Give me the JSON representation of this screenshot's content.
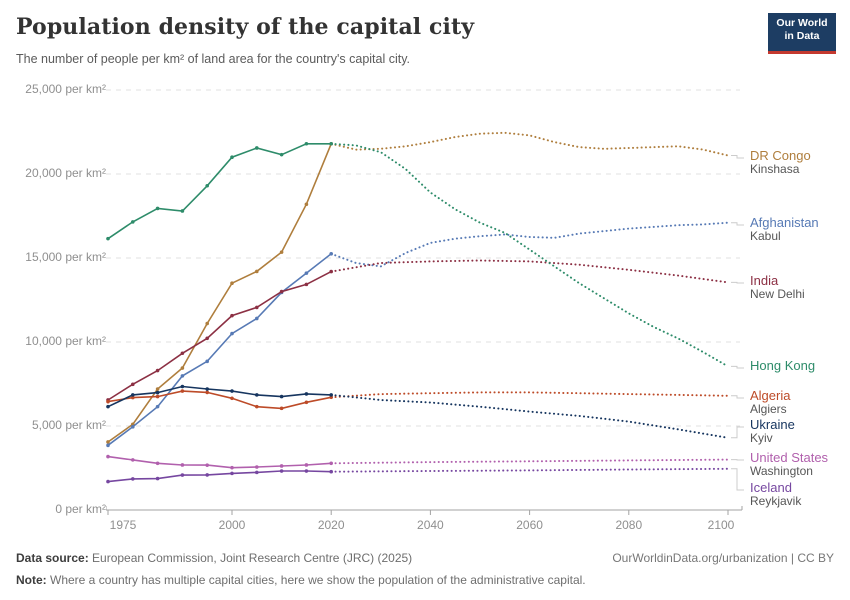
{
  "header": {
    "title": "Population density of the capital city",
    "subtitle": "The number of people per km² of land area for the country's capital city.",
    "logo_line1": "Our World",
    "logo_line2": "in Data",
    "logo_bg": "#1d3d63",
    "logo_accent": "#c4392f"
  },
  "chart_data": {
    "type": "line",
    "title": "Population density of the capital city",
    "ylabel": "per km²",
    "xlabel": "",
    "grid": "dashed-horizontal",
    "x_axis": {
      "tick_labels": [
        "1975",
        "2000",
        "2020",
        "2040",
        "2060",
        "2080",
        "2100"
      ],
      "tick_values": [
        1975,
        2000,
        2020,
        2040,
        2060,
        2080,
        2100
      ],
      "range": [
        1975,
        2100
      ],
      "projection_start": 2020
    },
    "y_axis": {
      "tick_labels": [
        "0 per km²",
        "5,000 per km²",
        "10,000 per km²",
        "15,000 per km²",
        "20,000 per km²",
        "25,000 per km²"
      ],
      "tick_values": [
        0,
        5000,
        10000,
        15000,
        20000,
        25000
      ],
      "range": [
        0,
        25000
      ]
    },
    "series": [
      {
        "label": "DR Congo",
        "city": "Kinshasa",
        "color": "#AF7E3D",
        "history": [
          [
            1975,
            4050
          ],
          [
            1980,
            5100
          ],
          [
            1985,
            7200
          ],
          [
            1990,
            8450
          ],
          [
            1995,
            11100
          ],
          [
            2000,
            13500
          ],
          [
            2005,
            14200
          ],
          [
            2010,
            15350
          ],
          [
            2015,
            18200
          ],
          [
            2020,
            21800
          ]
        ],
        "projection": [
          [
            2020,
            21800
          ],
          [
            2025,
            21450
          ],
          [
            2030,
            21500
          ],
          [
            2035,
            21650
          ],
          [
            2040,
            21900
          ],
          [
            2045,
            22200
          ],
          [
            2050,
            22400
          ],
          [
            2055,
            22450
          ],
          [
            2060,
            22300
          ],
          [
            2065,
            21900
          ],
          [
            2070,
            21600
          ],
          [
            2075,
            21500
          ],
          [
            2080,
            21550
          ],
          [
            2085,
            21600
          ],
          [
            2090,
            21650
          ],
          [
            2095,
            21450
          ],
          [
            2100,
            21100
          ]
        ]
      },
      {
        "label": "Afghanistan",
        "city": "Kabul",
        "color": "#577AB5",
        "history": [
          [
            1975,
            3850
          ],
          [
            1980,
            4950
          ],
          [
            1985,
            6150
          ],
          [
            1990,
            7980
          ],
          [
            1995,
            8850
          ],
          [
            2000,
            10500
          ],
          [
            2005,
            11400
          ],
          [
            2010,
            12950
          ],
          [
            2015,
            14100
          ],
          [
            2020,
            15250
          ]
        ],
        "projection": [
          [
            2020,
            15250
          ],
          [
            2025,
            14700
          ],
          [
            2030,
            14500
          ],
          [
            2035,
            15300
          ],
          [
            2040,
            15900
          ],
          [
            2045,
            16150
          ],
          [
            2050,
            16300
          ],
          [
            2055,
            16400
          ],
          [
            2060,
            16250
          ],
          [
            2065,
            16200
          ],
          [
            2070,
            16450
          ],
          [
            2075,
            16600
          ],
          [
            2080,
            16750
          ],
          [
            2085,
            16850
          ],
          [
            2090,
            16950
          ],
          [
            2095,
            17000
          ],
          [
            2100,
            17100
          ]
        ]
      },
      {
        "label": "India",
        "city": "New Delhi",
        "color": "#8C3044",
        "history": [
          [
            1975,
            6550
          ],
          [
            1980,
            7480
          ],
          [
            1985,
            8300
          ],
          [
            1990,
            9330
          ],
          [
            1995,
            10220
          ],
          [
            2000,
            11570
          ],
          [
            2005,
            12060
          ],
          [
            2010,
            13000
          ],
          [
            2015,
            13430
          ],
          [
            2020,
            14190
          ]
        ],
        "projection": [
          [
            2020,
            14190
          ],
          [
            2030,
            14700
          ],
          [
            2040,
            14800
          ],
          [
            2050,
            14850
          ],
          [
            2060,
            14800
          ],
          [
            2070,
            14600
          ],
          [
            2080,
            14300
          ],
          [
            2090,
            13950
          ],
          [
            2100,
            13550
          ]
        ]
      },
      {
        "label": "Hong Kong",
        "city": "",
        "color": "#2E8C6A",
        "history": [
          [
            1975,
            16150
          ],
          [
            1980,
            17150
          ],
          [
            1985,
            17950
          ],
          [
            1990,
            17800
          ],
          [
            1995,
            19300
          ],
          [
            2000,
            21000
          ],
          [
            2005,
            21550
          ],
          [
            2010,
            21150
          ],
          [
            2015,
            21800
          ],
          [
            2020,
            21800
          ]
        ],
        "projection": [
          [
            2020,
            21800
          ],
          [
            2025,
            21700
          ],
          [
            2030,
            21300
          ],
          [
            2035,
            20300
          ],
          [
            2040,
            18900
          ],
          [
            2045,
            17900
          ],
          [
            2050,
            17100
          ],
          [
            2055,
            16500
          ],
          [
            2060,
            15500
          ],
          [
            2065,
            14500
          ],
          [
            2070,
            13500
          ],
          [
            2075,
            12600
          ],
          [
            2080,
            11700
          ],
          [
            2085,
            10900
          ],
          [
            2090,
            10200
          ],
          [
            2095,
            9400
          ],
          [
            2100,
            8550
          ]
        ]
      },
      {
        "label": "Algeria",
        "city": "Algiers",
        "color": "#BD4B28",
        "history": [
          [
            1975,
            6450
          ],
          [
            1980,
            6690
          ],
          [
            1985,
            6750
          ],
          [
            1990,
            7080
          ],
          [
            1995,
            7000
          ],
          [
            2000,
            6650
          ],
          [
            2005,
            6150
          ],
          [
            2010,
            6050
          ],
          [
            2015,
            6410
          ],
          [
            2020,
            6710
          ]
        ],
        "projection": [
          [
            2020,
            6710
          ],
          [
            2030,
            6900
          ],
          [
            2040,
            6950
          ],
          [
            2050,
            7000
          ],
          [
            2060,
            7000
          ],
          [
            2070,
            6950
          ],
          [
            2080,
            6900
          ],
          [
            2090,
            6850
          ],
          [
            2100,
            6800
          ]
        ]
      },
      {
        "label": "Ukraine",
        "city": "Kyiv",
        "color": "#16355F",
        "history": [
          [
            1975,
            6150
          ],
          [
            1980,
            6850
          ],
          [
            1985,
            6990
          ],
          [
            1990,
            7350
          ],
          [
            1995,
            7200
          ],
          [
            2000,
            7080
          ],
          [
            2005,
            6850
          ],
          [
            2010,
            6750
          ],
          [
            2015,
            6910
          ],
          [
            2020,
            6850
          ]
        ],
        "projection": [
          [
            2020,
            6850
          ],
          [
            2030,
            6550
          ],
          [
            2040,
            6400
          ],
          [
            2050,
            6150
          ],
          [
            2060,
            5860
          ],
          [
            2070,
            5600
          ],
          [
            2080,
            5260
          ],
          [
            2090,
            4800
          ],
          [
            2100,
            4300
          ]
        ]
      },
      {
        "label": "United States",
        "city": "Washington",
        "color": "#B160AD",
        "history": [
          [
            1975,
            3180
          ],
          [
            1980,
            2980
          ],
          [
            1985,
            2780
          ],
          [
            1990,
            2680
          ],
          [
            1995,
            2670
          ],
          [
            2000,
            2520
          ],
          [
            2005,
            2560
          ],
          [
            2010,
            2620
          ],
          [
            2015,
            2680
          ],
          [
            2020,
            2780
          ]
        ],
        "projection": [
          [
            2020,
            2780
          ],
          [
            2040,
            2850
          ],
          [
            2060,
            2900
          ],
          [
            2080,
            2950
          ],
          [
            2100,
            3000
          ]
        ]
      },
      {
        "label": "Iceland",
        "city": "Reykjavik",
        "color": "#7647A0",
        "history": [
          [
            1975,
            1690
          ],
          [
            1980,
            1850
          ],
          [
            1985,
            1870
          ],
          [
            1990,
            2080
          ],
          [
            1995,
            2090
          ],
          [
            2000,
            2180
          ],
          [
            2005,
            2240
          ],
          [
            2010,
            2320
          ],
          [
            2015,
            2320
          ],
          [
            2020,
            2280
          ]
        ],
        "projection": [
          [
            2020,
            2280
          ],
          [
            2040,
            2320
          ],
          [
            2060,
            2360
          ],
          [
            2080,
            2410
          ],
          [
            2100,
            2450
          ]
        ]
      }
    ]
  },
  "footer": {
    "datasource_label": "Data source:",
    "datasource_text": " European Commission, Joint Research Centre (JRC) (2025)",
    "rights": "OurWorldinData.org/urbanization | CC BY",
    "note_label": "Note:",
    "note_text": " Where a country has multiple capital cities, here we show the population of the administrative capital."
  }
}
